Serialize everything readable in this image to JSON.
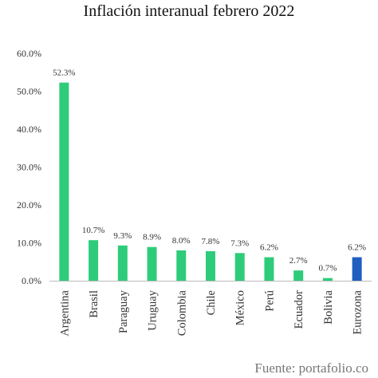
{
  "chart_data": {
    "type": "bar",
    "title": "Inflación interanual febrero 2022",
    "categories": [
      "Argentina",
      "Brasil",
      "Paraguay",
      "Uruguay",
      "Colombia",
      "Chile",
      "México",
      "Perú",
      "Ecuador",
      "Bolivia",
      "Eurozona"
    ],
    "values": [
      52.3,
      10.7,
      9.3,
      8.9,
      8.0,
      7.8,
      7.3,
      6.2,
      2.7,
      0.7,
      6.2
    ],
    "value_labels": [
      "52.3%",
      "10.7%",
      "9.3%",
      "8.9%",
      "8.0%",
      "7.8%",
      "7.3%",
      "6.2%",
      "2.7%",
      "0.7%",
      "6.2%"
    ],
    "bar_colors": [
      "#2ecc7a",
      "#2ecc7a",
      "#2ecc7a",
      "#2ecc7a",
      "#2ecc7a",
      "#2ecc7a",
      "#2ecc7a",
      "#2ecc7a",
      "#2ecc7a",
      "#2ecc7a",
      "#1f5fbf"
    ],
    "ylim": [
      0,
      60
    ],
    "yticks": [
      0,
      10,
      20,
      30,
      40,
      50,
      60
    ],
    "ytick_labels": [
      "0.0%",
      "10.0%",
      "20.0%",
      "30.0%",
      "40.0%",
      "50.0%",
      "60.0%"
    ],
    "xlabel": "",
    "ylabel": "",
    "grid": false,
    "legend": "none"
  },
  "source_note": "Fuente: portafolio.co"
}
